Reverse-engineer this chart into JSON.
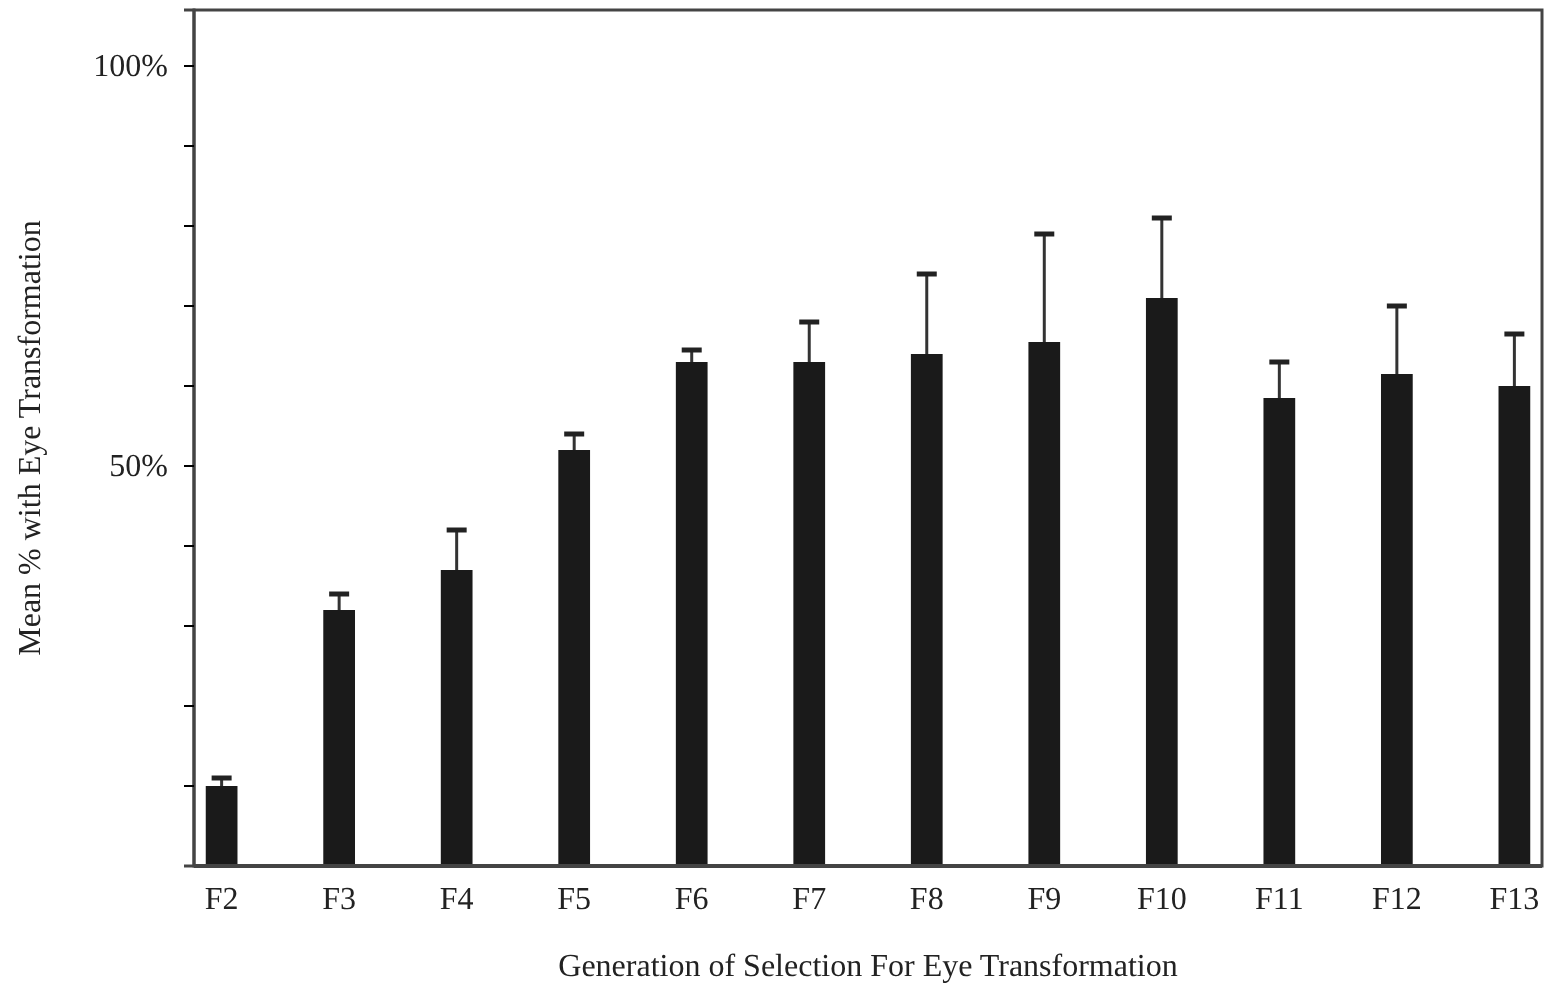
{
  "chart_data": {
    "type": "bar",
    "xlabel": "Generation of Selection For Eye Transformation",
    "ylabel": "Mean % with Eye Transformation",
    "categories": [
      "F2",
      "F3",
      "F4",
      "F5",
      "F6",
      "F7",
      "F8",
      "F9",
      "F10",
      "F11",
      "F12",
      "F13"
    ],
    "values": [
      10,
      32,
      37,
      52,
      63,
      63,
      64,
      65.5,
      71,
      58.5,
      61.5,
      60
    ],
    "errors": [
      [
        10,
        11
      ],
      [
        32,
        34
      ],
      [
        37,
        42
      ],
      [
        52,
        54
      ],
      [
        63,
        64.5
      ],
      [
        63,
        68
      ],
      [
        64,
        74
      ],
      [
        65.5,
        79
      ],
      [
        71,
        81
      ],
      [
        58.5,
        63
      ],
      [
        61.5,
        70
      ],
      [
        60,
        66.5
      ]
    ],
    "color": "#1a1a1a",
    "ylim": [
      0,
      107
    ],
    "yticks": [
      {
        "value": 10,
        "label": null
      },
      {
        "value": 20,
        "label": null
      },
      {
        "value": 30,
        "label": null
      },
      {
        "value": 40,
        "label": null
      },
      {
        "value": 50,
        "label": "50%"
      },
      {
        "value": 60,
        "label": null
      },
      {
        "value": 70,
        "label": null
      },
      {
        "value": 80,
        "label": null
      },
      {
        "value": 90,
        "label": null
      },
      {
        "value": 100,
        "label": "100%"
      }
    ],
    "grid": false
  }
}
